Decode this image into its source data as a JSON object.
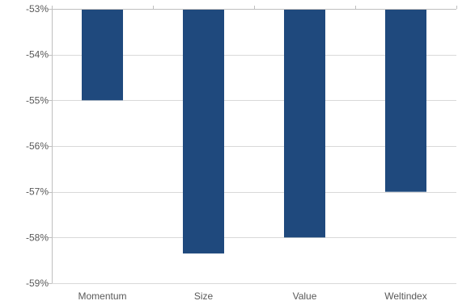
{
  "chart_data": {
    "type": "bar",
    "title": "",
    "xlabel": "",
    "ylabel": "",
    "categories": [
      "Momentum",
      "Size",
      "Value",
      "Weltindex"
    ],
    "values": [
      -55.0,
      -58.35,
      -58.0,
      -57.0
    ],
    "ylim": [
      -59,
      -53
    ],
    "yticks": [
      -53,
      -54,
      -55,
      -56,
      -57,
      -58,
      -59
    ],
    "ytick_labels": [
      "-53%",
      "-54%",
      "-55%",
      "-56%",
      "-57%",
      "-58%",
      "-59%"
    ],
    "grid": true,
    "legend": "none",
    "bar_color": "#1f497d",
    "grid_color": "#d9d9d9",
    "axis_color": "#bfbfbf",
    "label_color": "#595959"
  }
}
